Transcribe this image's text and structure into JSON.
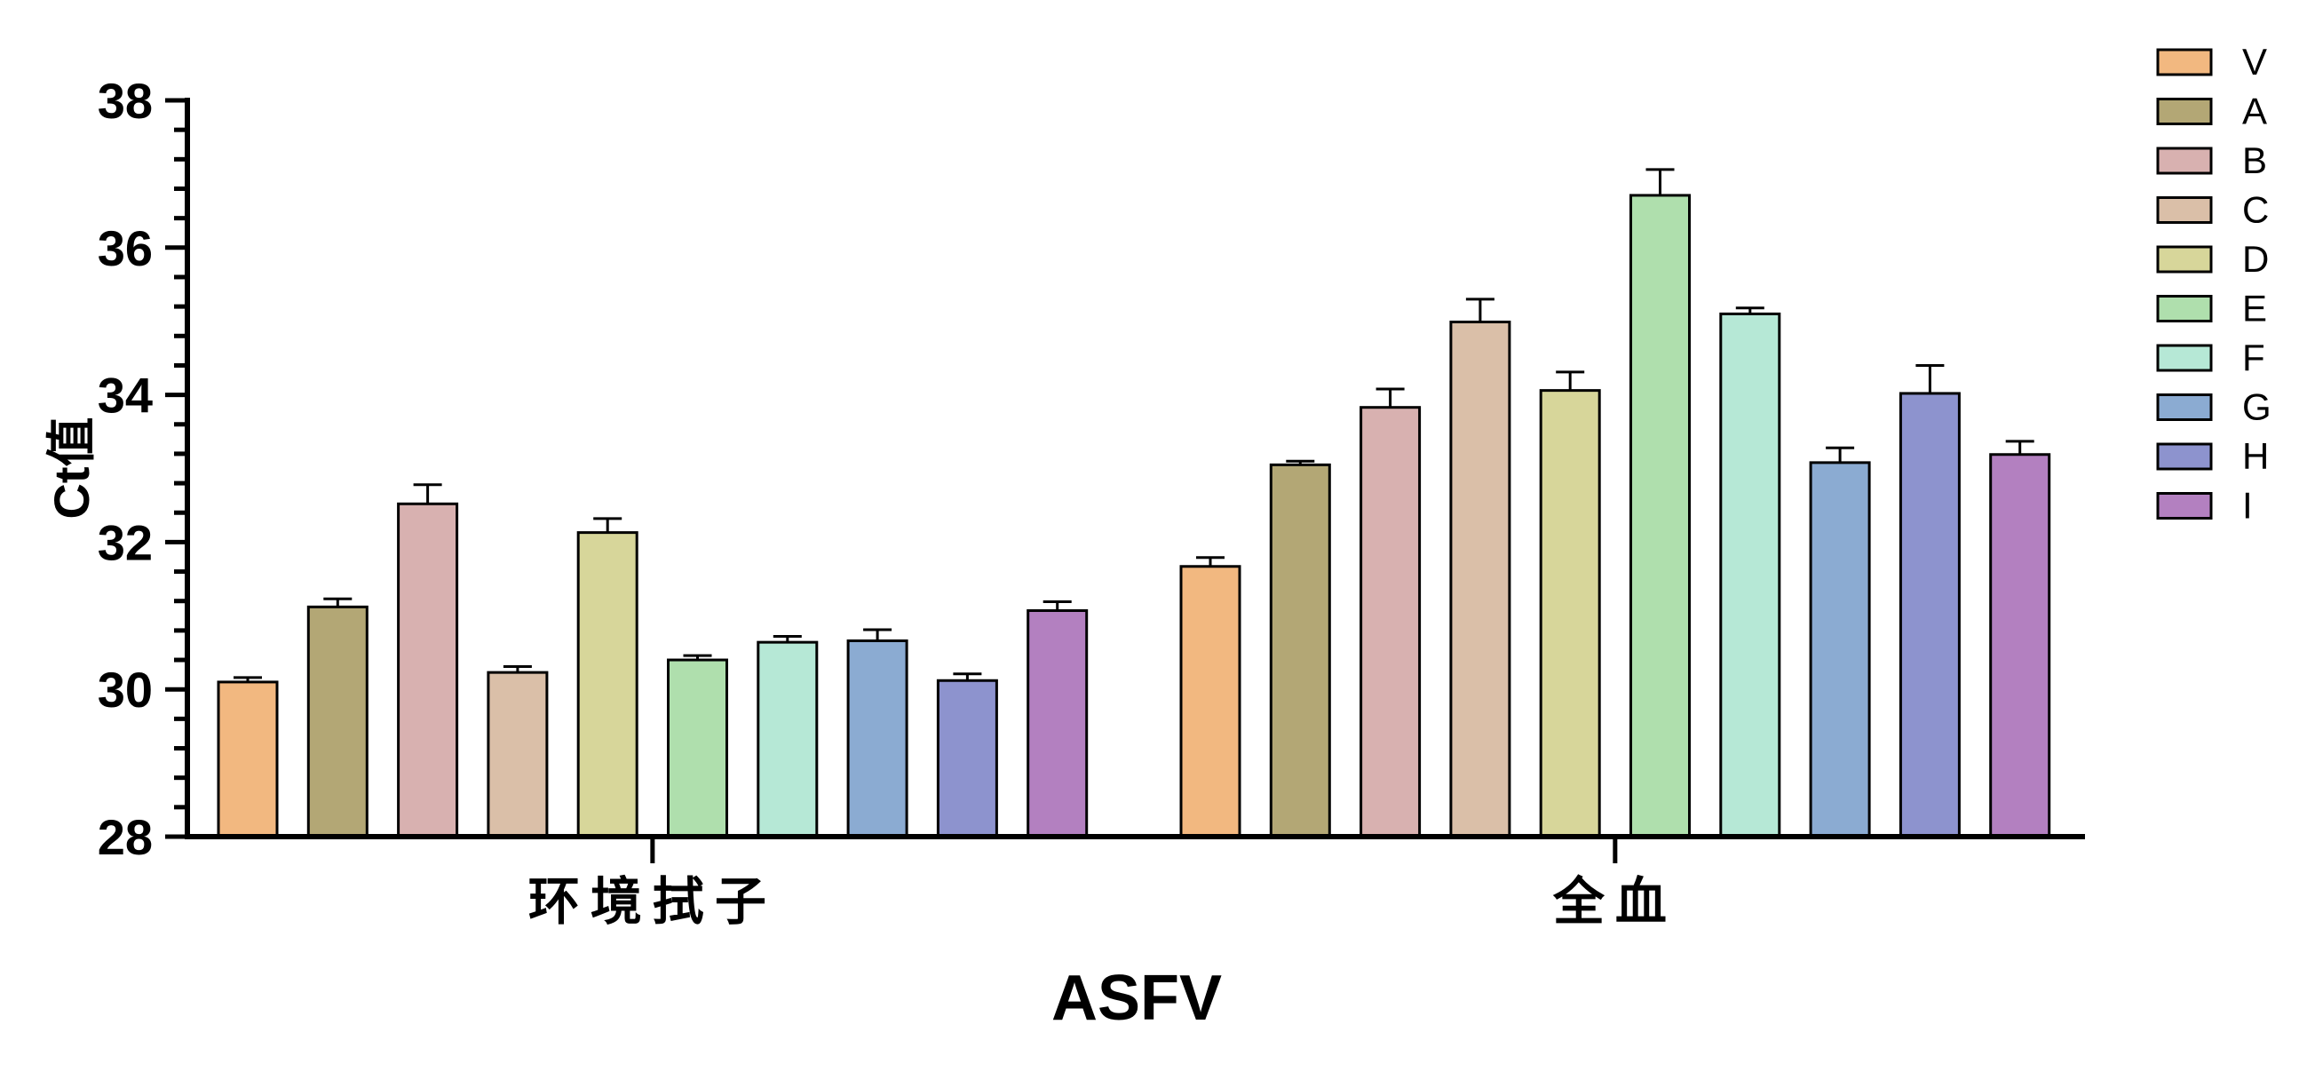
{
  "chart_data": {
    "type": "bar",
    "xlabel": "ASFV",
    "ylabel": "Ct值",
    "ylim": [
      28,
      38
    ],
    "yticks": [
      "28",
      "30",
      "32",
      "34",
      "36",
      "38"
    ],
    "categories": [
      "环境拭子",
      "全血"
    ],
    "legend_position": "right",
    "grid": false,
    "error_bars": true,
    "series": [
      {
        "name": "V",
        "color": "#F2B880",
        "values": [
          30.1,
          31.67
        ],
        "errors": [
          0.06,
          0.12
        ]
      },
      {
        "name": "A",
        "color": "#B3A775",
        "values": [
          31.12,
          33.05
        ],
        "errors": [
          0.11,
          0.05
        ]
      },
      {
        "name": "B",
        "color": "#D8B1B0",
        "values": [
          32.52,
          33.83
        ],
        "errors": [
          0.26,
          0.25
        ]
      },
      {
        "name": "C",
        "color": "#DABFA8",
        "values": [
          30.23,
          34.99
        ],
        "errors": [
          0.08,
          0.31
        ]
      },
      {
        "name": "D",
        "color": "#D7D69A",
        "values": [
          32.13,
          34.06
        ],
        "errors": [
          0.19,
          0.25
        ]
      },
      {
        "name": "E",
        "color": "#AFDFAD",
        "values": [
          30.4,
          36.71
        ],
        "errors": [
          0.06,
          0.35
        ]
      },
      {
        "name": "F",
        "color": "#B6E8D6",
        "values": [
          30.64,
          35.1
        ],
        "errors": [
          0.08,
          0.08
        ]
      },
      {
        "name": "G",
        "color": "#8BABD2",
        "values": [
          30.66,
          33.08
        ],
        "errors": [
          0.15,
          0.2
        ]
      },
      {
        "name": "H",
        "color": "#8D93CE",
        "values": [
          30.12,
          34.02
        ],
        "errors": [
          0.09,
          0.38
        ]
      },
      {
        "name": "I",
        "color": "#B380C0",
        "values": [
          31.07,
          33.19
        ],
        "errors": [
          0.12,
          0.18
        ]
      }
    ]
  }
}
